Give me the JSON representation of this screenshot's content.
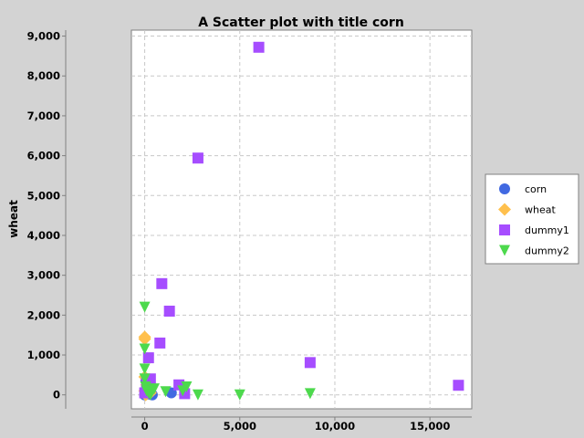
{
  "chart_data": {
    "type": "scatter",
    "title": "A Scatter plot with title corn",
    "xlabel": "",
    "ylabel": "wheat",
    "xlim": [
      -700,
      17200
    ],
    "ylim": [
      -350,
      9150
    ],
    "x_ticks": [
      "0",
      "5,000",
      "10,000",
      "15,000"
    ],
    "x_tick_values": [
      0,
      5000,
      10000,
      15000
    ],
    "y_ticks": [
      "0",
      "1,000",
      "2,000",
      "3,000",
      "4,000",
      "5,000",
      "6,000",
      "7,000",
      "8,000",
      "9,000"
    ],
    "y_tick_values": [
      0,
      1000,
      2000,
      3000,
      4000,
      5000,
      6000,
      7000,
      8000,
      9000
    ],
    "grid": true,
    "legend_position": "right",
    "series": [
      {
        "name": "corn",
        "marker": "circle",
        "color": "#4169e1",
        "points": [
          [
            0,
            0
          ],
          [
            50,
            100
          ],
          [
            100,
            200
          ],
          [
            150,
            50
          ],
          [
            200,
            300
          ],
          [
            300,
            100
          ],
          [
            400,
            0
          ],
          [
            1400,
            50
          ],
          [
            60,
            350
          ],
          [
            250,
            20
          ]
        ]
      },
      {
        "name": "wheat",
        "marker": "diamond",
        "color": "#ffc04d",
        "points": [
          [
            0,
            1450
          ],
          [
            0,
            1400
          ],
          [
            0,
            450
          ],
          [
            0,
            100
          ],
          [
            100,
            250
          ],
          [
            200,
            150
          ],
          [
            50,
            0
          ],
          [
            300,
            50
          ]
        ]
      },
      {
        "name": "dummy1",
        "marker": "square",
        "color": "#a64dff",
        "points": [
          [
            6000,
            8720
          ],
          [
            2800,
            5940
          ],
          [
            900,
            2790
          ],
          [
            1300,
            2100
          ],
          [
            800,
            1300
          ],
          [
            200,
            930
          ],
          [
            8700,
            810
          ],
          [
            16500,
            240
          ],
          [
            1800,
            250
          ],
          [
            2100,
            30
          ],
          [
            300,
            400
          ],
          [
            100,
            300
          ],
          [
            0,
            50
          ],
          [
            200,
            150
          ]
        ]
      },
      {
        "name": "dummy2",
        "marker": "triangle-down",
        "color": "#4dd94d",
        "points": [
          [
            0,
            2200
          ],
          [
            0,
            1150
          ],
          [
            0,
            650
          ],
          [
            0,
            400
          ],
          [
            50,
            200
          ],
          [
            100,
            100
          ],
          [
            200,
            50
          ],
          [
            300,
            0
          ],
          [
            500,
            150
          ],
          [
            2000,
            100
          ],
          [
            2200,
            200
          ],
          [
            2800,
            0
          ],
          [
            5000,
            0
          ],
          [
            8700,
            30
          ],
          [
            1100,
            80
          ]
        ]
      }
    ]
  }
}
